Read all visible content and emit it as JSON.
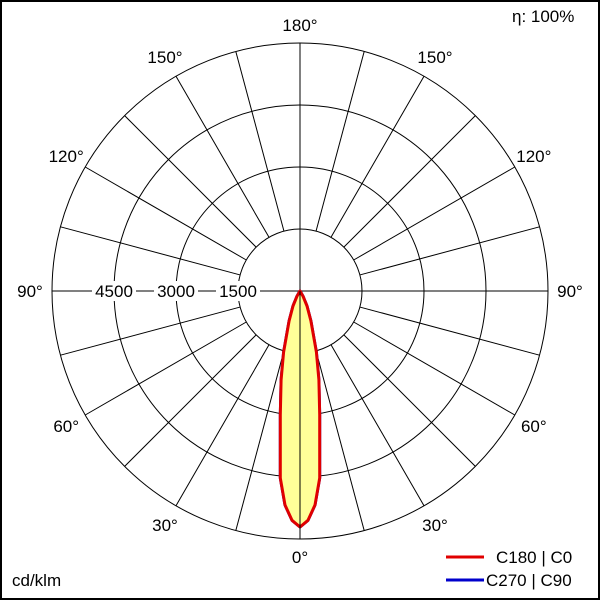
{
  "chart_data": {
    "type": "polar",
    "efficiency_label": "η: 100%",
    "unit_label": "cd/klm",
    "radial_ticks": [
      1500,
      3000,
      4500,
      6000
    ],
    "radial_tick_labels": [
      "1500",
      "3000",
      "4500"
    ],
    "rmax": 6000,
    "angle_grid_step": 15,
    "angle_labels": [
      {
        "angle": 0,
        "text": "0°"
      },
      {
        "angle": 30,
        "text": "30°"
      },
      {
        "angle": -30,
        "text": "30°"
      },
      {
        "angle": 60,
        "text": "60°"
      },
      {
        "angle": -60,
        "text": "60°"
      },
      {
        "angle": 90,
        "text": "90°"
      },
      {
        "angle": -90,
        "text": "90°"
      },
      {
        "angle": 120,
        "text": "120°"
      },
      {
        "angle": -120,
        "text": "120°"
      },
      {
        "angle": 150,
        "text": "150°"
      },
      {
        "angle": -150,
        "text": "150°"
      },
      {
        "angle": 180,
        "text": "180°"
      }
    ],
    "series": [
      {
        "name": "C180 | C0",
        "color": "#e00000",
        "fill": "#ffff99",
        "angles": [
          0,
          2,
          4,
          6,
          9,
          12,
          15,
          20,
          25,
          30,
          35
        ],
        "values": [
          5710,
          5550,
          5190,
          4550,
          3040,
          2200,
          1530,
          770,
          400,
          150,
          0
        ]
      },
      {
        "name": "C270 | C90",
        "color": "#0000cc",
        "angles": [
          0,
          2,
          4,
          6,
          9,
          12,
          15,
          20,
          25,
          30,
          35
        ],
        "values": [
          5710,
          5550,
          5190,
          4550,
          3040,
          2200,
          1530,
          770,
          400,
          150,
          0
        ]
      }
    ]
  }
}
